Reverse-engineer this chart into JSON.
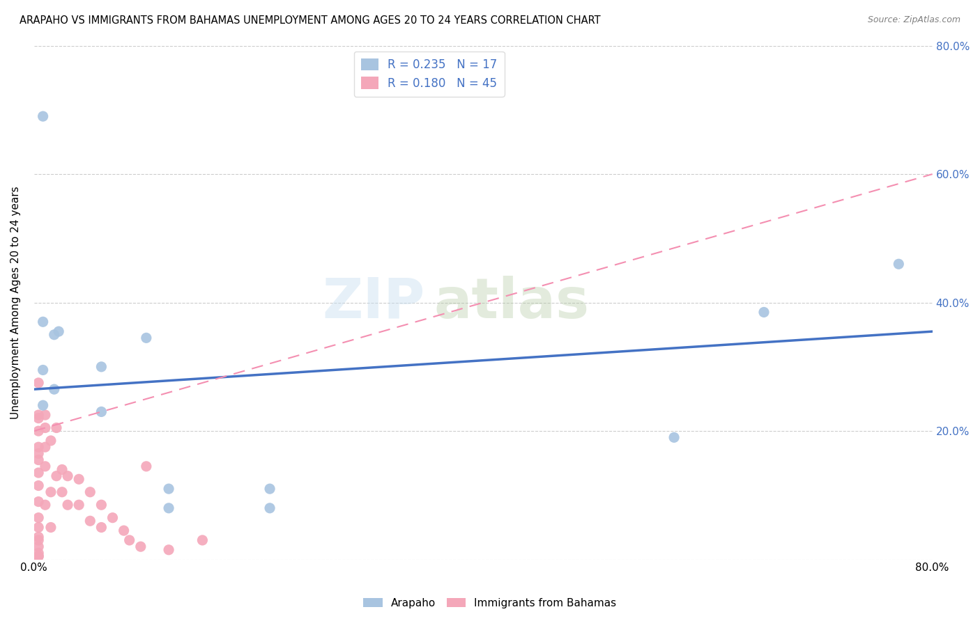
{
  "title": "ARAPAHO VS IMMIGRANTS FROM BAHAMAS UNEMPLOYMENT AMONG AGES 20 TO 24 YEARS CORRELATION CHART",
  "source": "Source: ZipAtlas.com",
  "ylabel": "Unemployment Among Ages 20 to 24 years",
  "x_min": 0.0,
  "x_max": 0.8,
  "y_min": 0.0,
  "y_max": 0.8,
  "arapaho_color": "#a8c4e0",
  "bahamas_color": "#f4a7b9",
  "arapaho_line_color": "#4472c4",
  "bahamas_line_color": "#f48fb1",
  "legend_R_arapaho": "0.235",
  "legend_N_arapaho": "17",
  "legend_R_bahamas": "0.180",
  "legend_N_bahamas": "45",
  "watermark_zip": "ZIP",
  "watermark_atlas": "atlas",
  "arapaho_trend_x0": 0.0,
  "arapaho_trend_y0": 0.265,
  "arapaho_trend_x1": 0.8,
  "arapaho_trend_y1": 0.355,
  "bahamas_trend_x0": 0.0,
  "bahamas_trend_y0": 0.2,
  "bahamas_trend_x1": 0.8,
  "bahamas_trend_y1": 0.6,
  "arapaho_x": [
    0.008,
    0.008,
    0.008,
    0.008,
    0.018,
    0.018,
    0.022,
    0.06,
    0.06,
    0.1,
    0.12,
    0.12,
    0.21,
    0.21,
    0.57,
    0.65,
    0.77
  ],
  "arapaho_y": [
    0.69,
    0.37,
    0.295,
    0.24,
    0.35,
    0.265,
    0.355,
    0.3,
    0.23,
    0.345,
    0.11,
    0.08,
    0.11,
    0.08,
    0.19,
    0.385,
    0.46
  ],
  "bahamas_x": [
    0.004,
    0.004,
    0.004,
    0.004,
    0.004,
    0.004,
    0.004,
    0.004,
    0.004,
    0.004,
    0.004,
    0.004,
    0.004,
    0.004,
    0.004,
    0.004,
    0.004,
    0.004,
    0.01,
    0.01,
    0.01,
    0.01,
    0.01,
    0.015,
    0.015,
    0.015,
    0.02,
    0.02,
    0.025,
    0.025,
    0.03,
    0.03,
    0.04,
    0.04,
    0.05,
    0.05,
    0.06,
    0.06,
    0.07,
    0.08,
    0.085,
    0.095,
    0.1,
    0.12,
    0.15
  ],
  "bahamas_y": [
    0.275,
    0.225,
    0.2,
    0.175,
    0.155,
    0.135,
    0.115,
    0.09,
    0.065,
    0.05,
    0.035,
    0.02,
    0.01,
    0.005,
    0.03,
    0.22,
    0.005,
    0.165,
    0.205,
    0.225,
    0.175,
    0.145,
    0.085,
    0.185,
    0.105,
    0.05,
    0.205,
    0.13,
    0.14,
    0.105,
    0.13,
    0.085,
    0.125,
    0.085,
    0.105,
    0.06,
    0.085,
    0.05,
    0.065,
    0.045,
    0.03,
    0.02,
    0.145,
    0.015,
    0.03
  ]
}
